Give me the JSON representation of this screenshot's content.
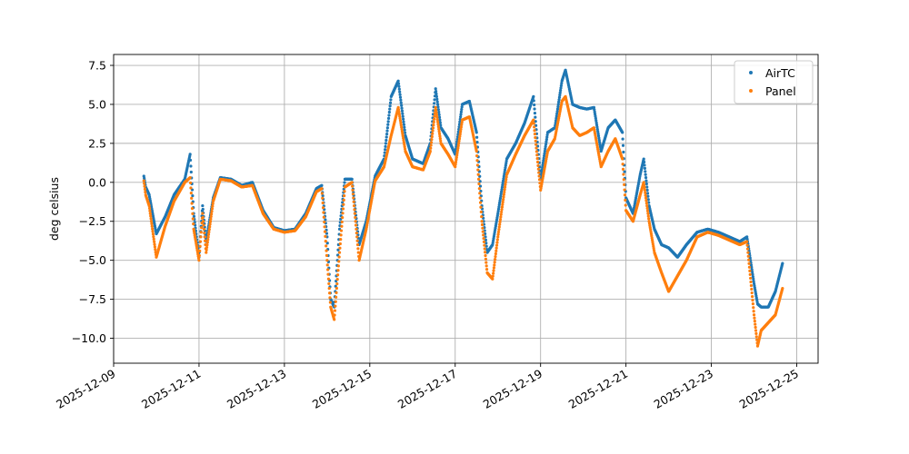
{
  "chart_data": {
    "type": "scatter",
    "title": "",
    "xlabel": "",
    "ylabel": "deg celsius",
    "x_type": "date",
    "xlim": [
      "2025-12-09T00:00",
      "2025-12-25T12:00"
    ],
    "ylim": [
      -11.6,
      8.2
    ],
    "x_ticks": [
      "2025-12-09",
      "2025-12-11",
      "2025-12-13",
      "2025-12-15",
      "2025-12-17",
      "2025-12-19",
      "2025-12-21",
      "2025-12-23",
      "2025-12-25"
    ],
    "y_ticks": [
      -10.0,
      -7.5,
      -5.0,
      -2.5,
      0.0,
      2.5,
      5.0,
      7.5
    ],
    "y_tick_labels": [
      "−10.0",
      "−7.5",
      "−5.0",
      "−2.5",
      "0.0",
      "2.5",
      "5.0",
      "7.5"
    ],
    "grid": true,
    "legend_position": "top-right",
    "series": [
      {
        "name": "AirTC",
        "color": "#1f77b4",
        "x": [
          "2025-12-09T17:00",
          "2025-12-09T18:00",
          "2025-12-09T20:00",
          "2025-12-10T00:00",
          "2025-12-10T05:00",
          "2025-12-10T10:00",
          "2025-12-10T16:00",
          "2025-12-10T19:00",
          "2025-12-10T21:00",
          "2025-12-11T00:00",
          "2025-12-11T02:00",
          "2025-12-11T04:00",
          "2025-12-11T08:00",
          "2025-12-11T12:00",
          "2025-12-11T18:00",
          "2025-12-12T00:00",
          "2025-12-12T06:00",
          "2025-12-12T12:00",
          "2025-12-12T18:00",
          "2025-12-13T00:00",
          "2025-12-13T06:00",
          "2025-12-13T12:00",
          "2025-12-13T18:00",
          "2025-12-13T21:00",
          "2025-12-14T00:00",
          "2025-12-14T02:00",
          "2025-12-14T04:00",
          "2025-12-14T07:00",
          "2025-12-14T10:00",
          "2025-12-14T14:00",
          "2025-12-14T18:00",
          "2025-12-14T22:00",
          "2025-12-15T03:00",
          "2025-12-15T08:00",
          "2025-12-15T12:00",
          "2025-12-15T16:00",
          "2025-12-15T20:00",
          "2025-12-16T00:00",
          "2025-12-16T06:00",
          "2025-12-16T10:00",
          "2025-12-16T13:00",
          "2025-12-16T16:00",
          "2025-12-16T20:00",
          "2025-12-17T00:00",
          "2025-12-17T04:00",
          "2025-12-17T08:00",
          "2025-12-17T12:00",
          "2025-12-17T15:00",
          "2025-12-17T18:00",
          "2025-12-17T21:00",
          "2025-12-18T00:00",
          "2025-12-18T05:00",
          "2025-12-18T10:00",
          "2025-12-18T15:00",
          "2025-12-18T20:00",
          "2025-12-19T00:00",
          "2025-12-19T04:00",
          "2025-12-19T08:00",
          "2025-12-19T12:00",
          "2025-12-19T14:00",
          "2025-12-19T18:00",
          "2025-12-19T22:00",
          "2025-12-20T02:00",
          "2025-12-20T06:00",
          "2025-12-20T10:00",
          "2025-12-20T14:00",
          "2025-12-20T18:00",
          "2025-12-20T22:00",
          "2025-12-21T00:00",
          "2025-12-21T04:00",
          "2025-12-21T08:00",
          "2025-12-21T10:00",
          "2025-12-21T13:00",
          "2025-12-21T16:00",
          "2025-12-21T20:00",
          "2025-12-22T00:00",
          "2025-12-22T05:00",
          "2025-12-22T10:00",
          "2025-12-22T16:00",
          "2025-12-22T22:00",
          "2025-12-23T04:00",
          "2025-12-23T10:00",
          "2025-12-23T16:00",
          "2025-12-23T20:00",
          "2025-12-24T00:00",
          "2025-12-24T02:00",
          "2025-12-24T04:00",
          "2025-12-24T08:00",
          "2025-12-24T12:00",
          "2025-12-24T16:00"
        ],
        "y": [
          0.4,
          -0.3,
          -0.8,
          -3.3,
          -2.2,
          -0.8,
          0.2,
          1.8,
          -2.0,
          -4.8,
          -1.5,
          -3.8,
          -1.0,
          0.3,
          0.2,
          -0.2,
          0.0,
          -1.8,
          -2.9,
          -3.1,
          -3.0,
          -2.0,
          -0.4,
          -0.2,
          -3.5,
          -7.5,
          -8.0,
          -3.0,
          0.2,
          0.2,
          -4.0,
          -2.5,
          0.4,
          1.5,
          5.5,
          6.5,
          3.0,
          1.5,
          1.2,
          2.5,
          6.0,
          3.5,
          2.8,
          1.8,
          5.0,
          5.2,
          3.2,
          -1.5,
          -4.5,
          -4.0,
          -2.0,
          1.5,
          2.5,
          3.8,
          5.5,
          0.2,
          3.2,
          3.5,
          6.5,
          7.2,
          5.0,
          4.8,
          4.7,
          4.8,
          2.0,
          3.5,
          4.0,
          3.2,
          -1.0,
          -2.0,
          0.5,
          1.5,
          -1.5,
          -3.0,
          -4.0,
          -4.2,
          -4.8,
          -4.0,
          -3.2,
          -3.0,
          -3.2,
          -3.5,
          -3.8,
          -3.5,
          -6.5,
          -7.8,
          -8.0,
          -8.0,
          -7.0,
          -5.2
        ]
      },
      {
        "name": "Panel",
        "color": "#ff7f0e",
        "x": [
          "2025-12-09T17:00",
          "2025-12-09T18:00",
          "2025-12-09T20:00",
          "2025-12-10T00:00",
          "2025-12-10T05:00",
          "2025-12-10T10:00",
          "2025-12-10T16:00",
          "2025-12-10T19:00",
          "2025-12-10T21:00",
          "2025-12-11T00:00",
          "2025-12-11T02:00",
          "2025-12-11T04:00",
          "2025-12-11T08:00",
          "2025-12-11T12:00",
          "2025-12-11T18:00",
          "2025-12-12T00:00",
          "2025-12-12T06:00",
          "2025-12-12T12:00",
          "2025-12-12T18:00",
          "2025-12-13T00:00",
          "2025-12-13T06:00",
          "2025-12-13T12:00",
          "2025-12-13T18:00",
          "2025-12-13T21:00",
          "2025-12-14T00:00",
          "2025-12-14T02:00",
          "2025-12-14T04:00",
          "2025-12-14T07:00",
          "2025-12-14T10:00",
          "2025-12-14T14:00",
          "2025-12-14T18:00",
          "2025-12-14T22:00",
          "2025-12-15T03:00",
          "2025-12-15T08:00",
          "2025-12-15T12:00",
          "2025-12-15T16:00",
          "2025-12-15T20:00",
          "2025-12-16T00:00",
          "2025-12-16T06:00",
          "2025-12-16T10:00",
          "2025-12-16T13:00",
          "2025-12-16T16:00",
          "2025-12-16T20:00",
          "2025-12-17T00:00",
          "2025-12-17T04:00",
          "2025-12-17T08:00",
          "2025-12-17T12:00",
          "2025-12-17T15:00",
          "2025-12-17T18:00",
          "2025-12-17T21:00",
          "2025-12-18T00:00",
          "2025-12-18T05:00",
          "2025-12-18T10:00",
          "2025-12-18T15:00",
          "2025-12-18T20:00",
          "2025-12-19T00:00",
          "2025-12-19T04:00",
          "2025-12-19T08:00",
          "2025-12-19T12:00",
          "2025-12-19T14:00",
          "2025-12-19T18:00",
          "2025-12-19T22:00",
          "2025-12-20T02:00",
          "2025-12-20T06:00",
          "2025-12-20T10:00",
          "2025-12-20T14:00",
          "2025-12-20T18:00",
          "2025-12-20T22:00",
          "2025-12-21T00:00",
          "2025-12-21T04:00",
          "2025-12-21T08:00",
          "2025-12-21T10:00",
          "2025-12-21T13:00",
          "2025-12-21T16:00",
          "2025-12-21T20:00",
          "2025-12-22T00:00",
          "2025-12-22T05:00",
          "2025-12-22T10:00",
          "2025-12-22T16:00",
          "2025-12-22T22:00",
          "2025-12-23T04:00",
          "2025-12-23T10:00",
          "2025-12-23T16:00",
          "2025-12-23T20:00",
          "2025-12-24T00:00",
          "2025-12-24T02:00",
          "2025-12-24T04:00",
          "2025-12-24T08:00",
          "2025-12-24T12:00",
          "2025-12-24T16:00"
        ],
        "y": [
          0.1,
          -0.8,
          -1.5,
          -4.8,
          -2.8,
          -1.2,
          0.0,
          0.3,
          -3.0,
          -5.0,
          -2.0,
          -4.5,
          -1.2,
          0.2,
          0.1,
          -0.3,
          -0.2,
          -2.0,
          -3.0,
          -3.2,
          -3.1,
          -2.2,
          -0.6,
          -0.4,
          -5.0,
          -8.0,
          -8.8,
          -4.5,
          -0.3,
          0.0,
          -5.0,
          -3.0,
          0.1,
          1.0,
          3.0,
          4.8,
          2.0,
          1.0,
          0.8,
          2.0,
          4.8,
          2.5,
          1.8,
          1.0,
          4.0,
          4.2,
          2.0,
          -2.5,
          -5.8,
          -6.2,
          -3.5,
          0.5,
          1.8,
          3.0,
          4.0,
          -0.5,
          2.0,
          2.8,
          5.2,
          5.5,
          3.5,
          3.0,
          3.2,
          3.5,
          1.0,
          2.0,
          2.8,
          1.5,
          -1.8,
          -2.5,
          -0.8,
          0.0,
          -2.5,
          -4.5,
          -5.8,
          -7.0,
          -6.0,
          -5.0,
          -3.5,
          -3.2,
          -3.4,
          -3.7,
          -4.0,
          -3.8,
          -8.5,
          -10.5,
          -9.5,
          -9.0,
          -8.5,
          -6.8
        ]
      }
    ]
  }
}
